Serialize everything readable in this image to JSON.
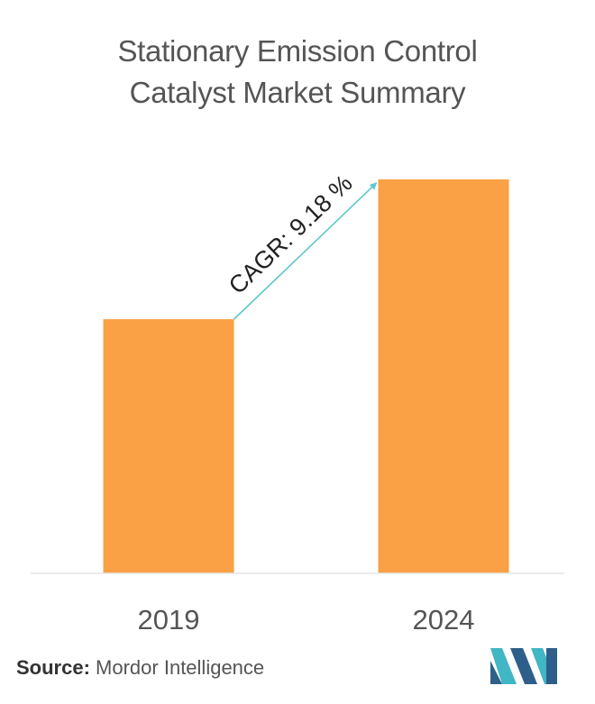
{
  "header": {
    "title_line1": "Stationary Emission Control",
    "title_line2": "Catalyst Market Summary"
  },
  "chart_data": {
    "type": "bar",
    "title": "Stationary Emission Control Catalyst Market Summary",
    "categories": [
      "2019",
      "2024"
    ],
    "values": [
      0.645,
      1.0
    ],
    "ylim": [
      0,
      1.0
    ],
    "xlabel": "",
    "ylabel": "",
    "grid": false,
    "legend": "none",
    "bar_color": "#f9a144",
    "annotation": {
      "text": "CAGR: 9.18 %",
      "from_category": "2019",
      "to_category": "2024",
      "arrow_color": "#5ec8cc"
    }
  },
  "footer": {
    "source_label": "Source:",
    "source_value": "Mordor Intelligence"
  },
  "logo": {
    "icon": "mordor-intelligence-logo-icon",
    "color_primary": "#2e5f8a",
    "color_accent": "#41b6c4"
  }
}
